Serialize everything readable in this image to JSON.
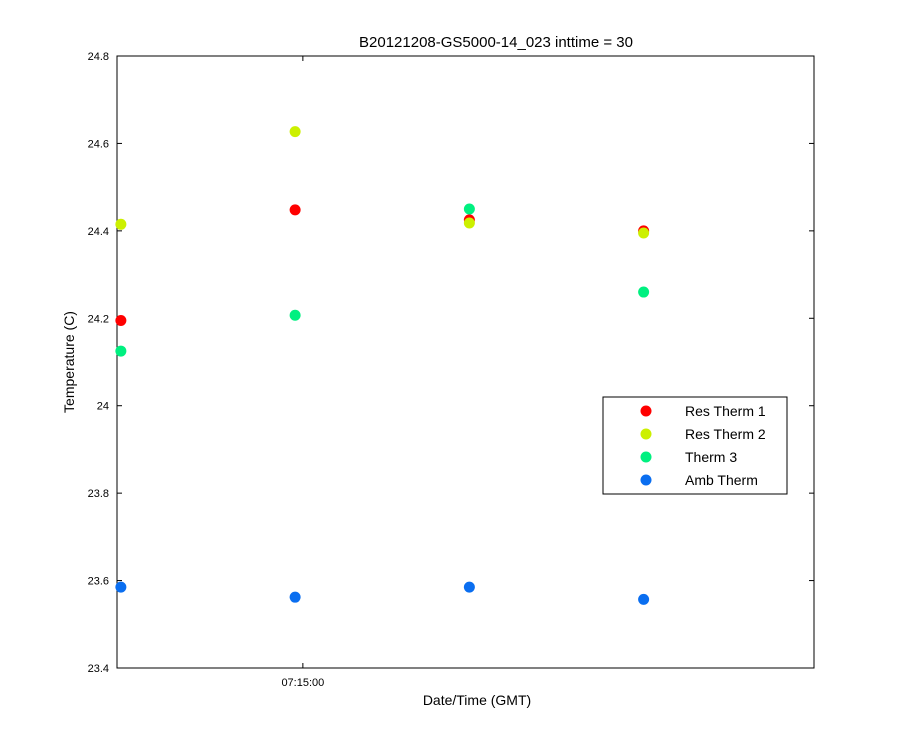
{
  "chart_data": {
    "type": "scatter",
    "title": "B20121208-GS5000-14_023 inttime = 30",
    "xlabel": "Date/Time (GMT)",
    "ylabel": "Temperature (C)",
    "ylim": [
      23.4,
      24.8
    ],
    "yticks": [
      "23.4",
      "23.6",
      "23.8",
      "24",
      "24.2",
      "24.4",
      "24.6",
      "24.8"
    ],
    "xlim": [
      "07:14:12",
      "07:17:12"
    ],
    "xticks": [
      "07:15:00"
    ],
    "x": [
      "07:14:13",
      "07:14:58",
      "07:15:43",
      "07:16:28"
    ],
    "grid": false,
    "legend_position": "right",
    "series": [
      {
        "name": "Res Therm 1",
        "color": "#ff0000",
        "values": [
          24.195,
          24.448,
          24.425,
          24.4
        ]
      },
      {
        "name": "Res Therm 2",
        "color": "#ccf000",
        "values": [
          24.415,
          24.627,
          24.418,
          24.395
        ]
      },
      {
        "name": "Therm 3",
        "color": "#00f080",
        "values": [
          24.125,
          24.207,
          24.45,
          24.26
        ]
      },
      {
        "name": "Amb Therm",
        "color": "#0a6ef0",
        "values": [
          23.585,
          23.562,
          23.585,
          23.557
        ]
      }
    ]
  }
}
